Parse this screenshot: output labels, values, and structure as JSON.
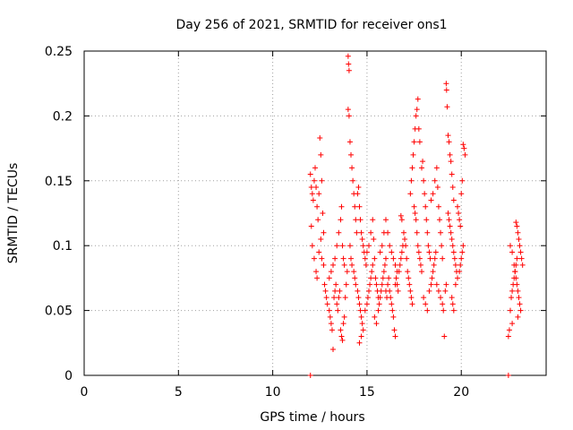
{
  "chart_data": {
    "type": "scatter",
    "title": "Day 256 of 2021, SRMTID for receiver ons1",
    "xlabel": "GPS time / hours",
    "ylabel": "SRMTID / TECUs",
    "xlim": [
      0,
      24.5
    ],
    "ylim": [
      0,
      0.25
    ],
    "x_ticks": [
      0,
      5,
      10,
      15,
      20
    ],
    "x_tick_labels": [
      "0",
      "5",
      "10",
      "15",
      "20"
    ],
    "y_ticks": [
      0,
      0.05,
      0.1,
      0.15,
      0.2,
      0.25
    ],
    "y_tick_labels": [
      "0",
      "0.05",
      "0.1",
      "0.15",
      "0.2",
      "0.25"
    ],
    "grid": true,
    "marker": "plus",
    "series": [
      {
        "name": "SRMTID ons1",
        "color": "#ff0000",
        "points": [
          [
            12.0,
            0.0
          ],
          [
            22.5,
            0.0
          ],
          [
            12.0,
            0.155
          ],
          [
            12.05,
            0.145
          ],
          [
            12.1,
            0.14
          ],
          [
            12.15,
            0.135
          ],
          [
            12.2,
            0.15
          ],
          [
            12.25,
            0.16
          ],
          [
            12.3,
            0.145
          ],
          [
            12.35,
            0.13
          ],
          [
            12.4,
            0.12
          ],
          [
            12.45,
            0.14
          ],
          [
            12.5,
            0.183
          ],
          [
            12.55,
            0.17
          ],
          [
            12.6,
            0.15
          ],
          [
            12.65,
            0.125
          ],
          [
            12.7,
            0.11
          ],
          [
            12.05,
            0.115
          ],
          [
            12.1,
            0.1
          ],
          [
            12.2,
            0.09
          ],
          [
            12.3,
            0.08
          ],
          [
            12.35,
            0.075
          ],
          [
            12.45,
            0.095
          ],
          [
            12.55,
            0.105
          ],
          [
            12.6,
            0.09
          ],
          [
            12.7,
            0.085
          ],
          [
            12.75,
            0.07
          ],
          [
            12.8,
            0.065
          ],
          [
            12.85,
            0.06
          ],
          [
            12.9,
            0.055
          ],
          [
            13.0,
            0.05
          ],
          [
            13.05,
            0.045
          ],
          [
            13.1,
            0.04
          ],
          [
            13.15,
            0.035
          ],
          [
            13.2,
            0.02
          ],
          [
            13.25,
            0.06
          ],
          [
            13.3,
            0.065
          ],
          [
            13.35,
            0.07
          ],
          [
            13.4,
            0.055
          ],
          [
            13.45,
            0.05
          ],
          [
            13.5,
            0.06
          ],
          [
            13.55,
            0.065
          ],
          [
            13.0,
            0.075
          ],
          [
            13.1,
            0.08
          ],
          [
            13.2,
            0.085
          ],
          [
            13.3,
            0.09
          ],
          [
            13.4,
            0.1
          ],
          [
            13.5,
            0.11
          ],
          [
            13.6,
            0.12
          ],
          [
            13.65,
            0.13
          ],
          [
            13.7,
            0.1
          ],
          [
            13.75,
            0.09
          ],
          [
            13.8,
            0.085
          ],
          [
            13.6,
            0.035
          ],
          [
            13.65,
            0.03
          ],
          [
            13.7,
            0.027
          ],
          [
            13.75,
            0.04
          ],
          [
            13.8,
            0.045
          ],
          [
            13.85,
            0.06
          ],
          [
            13.9,
            0.07
          ],
          [
            13.95,
            0.08
          ],
          [
            14.0,
            0.246
          ],
          [
            14.02,
            0.24
          ],
          [
            14.05,
            0.235
          ],
          [
            14.0,
            0.205
          ],
          [
            14.05,
            0.2
          ],
          [
            14.1,
            0.18
          ],
          [
            14.15,
            0.17
          ],
          [
            14.2,
            0.16
          ],
          [
            14.25,
            0.15
          ],
          [
            14.3,
            0.14
          ],
          [
            14.35,
            0.13
          ],
          [
            14.4,
            0.12
          ],
          [
            14.45,
            0.11
          ],
          [
            14.1,
            0.1
          ],
          [
            14.15,
            0.09
          ],
          [
            14.2,
            0.085
          ],
          [
            14.3,
            0.08
          ],
          [
            14.35,
            0.075
          ],
          [
            14.4,
            0.07
          ],
          [
            14.5,
            0.065
          ],
          [
            14.55,
            0.06
          ],
          [
            14.6,
            0.055
          ],
          [
            14.65,
            0.05
          ],
          [
            14.7,
            0.045
          ],
          [
            14.75,
            0.04
          ],
          [
            14.8,
            0.035
          ],
          [
            14.5,
            0.14
          ],
          [
            14.55,
            0.145
          ],
          [
            14.6,
            0.13
          ],
          [
            14.65,
            0.12
          ],
          [
            14.7,
            0.11
          ],
          [
            14.75,
            0.105
          ],
          [
            14.8,
            0.1
          ],
          [
            14.85,
            0.095
          ],
          [
            14.9,
            0.09
          ],
          [
            14.95,
            0.085
          ],
          [
            14.6,
            0.025
          ],
          [
            14.7,
            0.03
          ],
          [
            14.9,
            0.05
          ],
          [
            15.0,
            0.055
          ],
          [
            15.05,
            0.06
          ],
          [
            15.1,
            0.065
          ],
          [
            15.15,
            0.07
          ],
          [
            15.2,
            0.075
          ],
          [
            15.25,
            0.08
          ],
          [
            15.3,
            0.085
          ],
          [
            15.0,
            0.095
          ],
          [
            15.1,
            0.1
          ],
          [
            15.2,
            0.11
          ],
          [
            15.3,
            0.12
          ],
          [
            15.35,
            0.105
          ],
          [
            15.4,
            0.09
          ],
          [
            15.45,
            0.075
          ],
          [
            15.5,
            0.07
          ],
          [
            15.55,
            0.065
          ],
          [
            15.6,
            0.06
          ],
          [
            15.65,
            0.055
          ],
          [
            15.4,
            0.045
          ],
          [
            15.5,
            0.04
          ],
          [
            15.6,
            0.05
          ],
          [
            15.7,
            0.06
          ],
          [
            15.75,
            0.065
          ],
          [
            15.8,
            0.07
          ],
          [
            15.85,
            0.075
          ],
          [
            15.9,
            0.08
          ],
          [
            15.95,
            0.085
          ],
          [
            16.0,
            0.09
          ],
          [
            15.7,
            0.095
          ],
          [
            15.8,
            0.1
          ],
          [
            15.9,
            0.11
          ],
          [
            16.0,
            0.12
          ],
          [
            16.1,
            0.11
          ],
          [
            16.2,
            0.1
          ],
          [
            16.3,
            0.095
          ],
          [
            16.4,
            0.09
          ],
          [
            16.5,
            0.085
          ],
          [
            16.6,
            0.08
          ],
          [
            16.0,
            0.065
          ],
          [
            16.05,
            0.06
          ],
          [
            16.1,
            0.07
          ],
          [
            16.15,
            0.075
          ],
          [
            16.2,
            0.065
          ],
          [
            16.25,
            0.06
          ],
          [
            16.3,
            0.055
          ],
          [
            16.35,
            0.05
          ],
          [
            16.4,
            0.045
          ],
          [
            16.45,
            0.035
          ],
          [
            16.5,
            0.03
          ],
          [
            16.5,
            0.07
          ],
          [
            16.55,
            0.075
          ],
          [
            16.6,
            0.07
          ],
          [
            16.65,
            0.065
          ],
          [
            16.7,
            0.08
          ],
          [
            16.75,
            0.085
          ],
          [
            16.8,
            0.09
          ],
          [
            16.85,
            0.095
          ],
          [
            16.9,
            0.1
          ],
          [
            16.95,
            0.11
          ],
          [
            16.8,
            0.123
          ],
          [
            16.85,
            0.12
          ],
          [
            17.0,
            0.105
          ],
          [
            17.05,
            0.1
          ],
          [
            17.1,
            0.09
          ],
          [
            17.15,
            0.08
          ],
          [
            17.2,
            0.075
          ],
          [
            17.25,
            0.07
          ],
          [
            17.3,
            0.065
          ],
          [
            17.35,
            0.06
          ],
          [
            17.4,
            0.055
          ],
          [
            17.3,
            0.14
          ],
          [
            17.35,
            0.15
          ],
          [
            17.4,
            0.16
          ],
          [
            17.45,
            0.17
          ],
          [
            17.5,
            0.18
          ],
          [
            17.55,
            0.19
          ],
          [
            17.6,
            0.2
          ],
          [
            17.65,
            0.205
          ],
          [
            17.7,
            0.213
          ],
          [
            17.75,
            0.19
          ],
          [
            17.8,
            0.18
          ],
          [
            17.5,
            0.13
          ],
          [
            17.55,
            0.125
          ],
          [
            17.6,
            0.12
          ],
          [
            17.65,
            0.11
          ],
          [
            17.7,
            0.1
          ],
          [
            17.75,
            0.095
          ],
          [
            17.8,
            0.09
          ],
          [
            17.85,
            0.085
          ],
          [
            17.9,
            0.08
          ],
          [
            17.9,
            0.16
          ],
          [
            17.95,
            0.165
          ],
          [
            18.0,
            0.15
          ],
          [
            18.05,
            0.14
          ],
          [
            18.1,
            0.13
          ],
          [
            18.15,
            0.12
          ],
          [
            18.2,
            0.11
          ],
          [
            18.25,
            0.1
          ],
          [
            18.3,
            0.095
          ],
          [
            18.35,
            0.09
          ],
          [
            18.0,
            0.06
          ],
          [
            18.1,
            0.055
          ],
          [
            18.2,
            0.05
          ],
          [
            18.3,
            0.065
          ],
          [
            18.4,
            0.07
          ],
          [
            18.45,
            0.075
          ],
          [
            18.5,
            0.08
          ],
          [
            18.55,
            0.085
          ],
          [
            18.6,
            0.09
          ],
          [
            18.65,
            0.095
          ],
          [
            18.4,
            0.135
          ],
          [
            18.5,
            0.14
          ],
          [
            18.6,
            0.15
          ],
          [
            18.7,
            0.16
          ],
          [
            18.75,
            0.145
          ],
          [
            18.8,
            0.13
          ],
          [
            18.85,
            0.12
          ],
          [
            18.9,
            0.11
          ],
          [
            18.95,
            0.1
          ],
          [
            19.0,
            0.09
          ],
          [
            18.7,
            0.07
          ],
          [
            18.8,
            0.065
          ],
          [
            18.9,
            0.06
          ],
          [
            19.0,
            0.055
          ],
          [
            19.05,
            0.05
          ],
          [
            19.1,
            0.03
          ],
          [
            19.15,
            0.065
          ],
          [
            19.2,
            0.07
          ],
          [
            19.2,
            0.225
          ],
          [
            19.22,
            0.22
          ],
          [
            19.25,
            0.207
          ],
          [
            19.3,
            0.185
          ],
          [
            19.35,
            0.18
          ],
          [
            19.4,
            0.17
          ],
          [
            19.45,
            0.165
          ],
          [
            19.5,
            0.155
          ],
          [
            19.55,
            0.145
          ],
          [
            19.6,
            0.135
          ],
          [
            19.3,
            0.125
          ],
          [
            19.35,
            0.12
          ],
          [
            19.4,
            0.115
          ],
          [
            19.45,
            0.11
          ],
          [
            19.5,
            0.105
          ],
          [
            19.55,
            0.1
          ],
          [
            19.6,
            0.095
          ],
          [
            19.65,
            0.09
          ],
          [
            19.7,
            0.085
          ],
          [
            19.75,
            0.08
          ],
          [
            19.5,
            0.06
          ],
          [
            19.55,
            0.055
          ],
          [
            19.6,
            0.05
          ],
          [
            19.7,
            0.07
          ],
          [
            19.8,
            0.075
          ],
          [
            19.9,
            0.08
          ],
          [
            19.95,
            0.085
          ],
          [
            20.0,
            0.09
          ],
          [
            20.05,
            0.095
          ],
          [
            20.1,
            0.1
          ],
          [
            19.8,
            0.13
          ],
          [
            19.85,
            0.125
          ],
          [
            19.9,
            0.12
          ],
          [
            19.95,
            0.115
          ],
          [
            20.0,
            0.14
          ],
          [
            20.05,
            0.15
          ],
          [
            20.1,
            0.178
          ],
          [
            20.15,
            0.175
          ],
          [
            20.2,
            0.17
          ],
          [
            22.5,
            0.03
          ],
          [
            22.55,
            0.035
          ],
          [
            22.6,
            0.05
          ],
          [
            22.65,
            0.06
          ],
          [
            22.7,
            0.065
          ],
          [
            22.75,
            0.07
          ],
          [
            22.8,
            0.075
          ],
          [
            22.85,
            0.08
          ],
          [
            22.9,
            0.085
          ],
          [
            22.95,
            0.09
          ],
          [
            22.6,
            0.1
          ],
          [
            22.7,
            0.095
          ],
          [
            22.8,
            0.085
          ],
          [
            22.85,
            0.08
          ],
          [
            22.9,
            0.075
          ],
          [
            22.95,
            0.07
          ],
          [
            23.0,
            0.065
          ],
          [
            23.05,
            0.06
          ],
          [
            23.1,
            0.055
          ],
          [
            23.15,
            0.05
          ],
          [
            22.9,
            0.118
          ],
          [
            22.95,
            0.115
          ],
          [
            23.0,
            0.11
          ],
          [
            23.05,
            0.105
          ],
          [
            23.1,
            0.1
          ],
          [
            23.15,
            0.095
          ],
          [
            23.2,
            0.09
          ],
          [
            23.25,
            0.085
          ],
          [
            23.0,
            0.045
          ],
          [
            22.7,
            0.04
          ]
        ]
      }
    ]
  }
}
